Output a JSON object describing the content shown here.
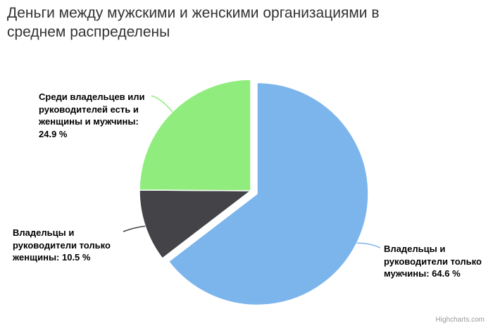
{
  "chart_data": {
    "type": "pie",
    "title": "Деньги между мужскими и женскими организациями в\nсреднем распределены",
    "credits": "Highcharts.com",
    "background_color": "#ffffff",
    "title_color": "#333333",
    "label_color": "#000000",
    "credits_color": "#999999",
    "slice_border_color": "#ffffff",
    "start_angle_deg": 0,
    "direction": "clockwise",
    "legend": "none",
    "total": 100.0,
    "points": [
      {
        "slug": "men",
        "name": "Владельцы и руководители только мужчины",
        "value": 64.6,
        "percent_label": "64.6 %",
        "color": "#7cb5ec",
        "sliced": true,
        "label": "Владельцы и\nруководители только\nмужчины: 64.6 %"
      },
      {
        "slug": "women",
        "name": "Владельцы и руководители только женщины",
        "value": 10.5,
        "percent_label": "10.5 %",
        "color": "#434348",
        "sliced": false,
        "label": "Владельцы и\nруководители только\nженщины: 10.5 %"
      },
      {
        "slug": "mixed",
        "name": "Среди владельцев или руководителей есть и женщины и мужчины",
        "value": 24.9,
        "percent_label": "24.9 %",
        "color": "#90ed7d",
        "sliced": false,
        "label": "Среди владельцев или\nруководителей есть и\nженщины и мужчины:\n24.9 %"
      }
    ]
  }
}
